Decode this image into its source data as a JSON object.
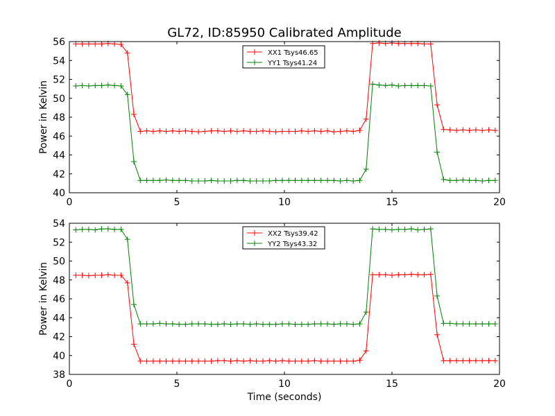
{
  "figure": {
    "title": "GL72, ID:85950 Calibrated Amplitude"
  },
  "chart_data": [
    {
      "type": "line",
      "ylabel": "Power in Kelvin",
      "xlabel": "",
      "xlim": [
        0,
        20
      ],
      "ylim": [
        40,
        56
      ],
      "xticks": [
        0,
        5,
        10,
        15,
        20
      ],
      "yticks": [
        40,
        42,
        44,
        46,
        48,
        50,
        52,
        54,
        56
      ],
      "grid": false,
      "legend": "top-center",
      "x": [
        0.3,
        0.6,
        0.9,
        1.2,
        1.5,
        1.8,
        2.1,
        2.4,
        2.7,
        3.0,
        3.3,
        3.6,
        3.9,
        4.2,
        4.5,
        4.8,
        5.1,
        5.4,
        5.7,
        6.0,
        6.3,
        6.6,
        6.9,
        7.2,
        7.5,
        7.8,
        8.1,
        8.4,
        8.7,
        9.0,
        9.3,
        9.6,
        9.9,
        10.2,
        10.5,
        10.8,
        11.1,
        11.4,
        11.7,
        12.0,
        12.3,
        12.6,
        12.9,
        13.2,
        13.5,
        13.8,
        14.1,
        14.4,
        14.7,
        15.0,
        15.3,
        15.6,
        15.9,
        16.2,
        16.5,
        16.8,
        17.1,
        17.4,
        17.7,
        18.0,
        18.3,
        18.6,
        18.9,
        19.2,
        19.5,
        19.8
      ],
      "series": [
        {
          "name": "XX1 Tsys46.65",
          "color": "#ff0000",
          "values": [
            55.75,
            55.75,
            55.75,
            55.75,
            55.75,
            55.8,
            55.75,
            55.7,
            54.8,
            48.3,
            46.5,
            46.55,
            46.5,
            46.55,
            46.5,
            46.55,
            46.5,
            46.55,
            46.5,
            46.45,
            46.5,
            46.55,
            46.55,
            46.5,
            46.55,
            46.5,
            46.55,
            46.5,
            46.5,
            46.55,
            46.5,
            46.45,
            46.5,
            46.5,
            46.5,
            46.55,
            46.5,
            46.55,
            46.5,
            46.55,
            46.45,
            46.5,
            46.55,
            46.5,
            46.6,
            47.8,
            55.8,
            55.85,
            55.8,
            55.85,
            55.8,
            55.8,
            55.8,
            55.8,
            55.75,
            55.75,
            49.3,
            46.7,
            46.65,
            46.6,
            46.65,
            46.6,
            46.65,
            46.6,
            46.65,
            46.6
          ]
        },
        {
          "name": "YY1 Tsys41.24",
          "color": "#008000",
          "values": [
            51.3,
            51.35,
            51.3,
            51.35,
            51.35,
            51.4,
            51.35,
            51.3,
            50.4,
            43.3,
            41.3,
            41.3,
            41.3,
            41.3,
            41.35,
            41.3,
            41.3,
            41.3,
            41.25,
            41.25,
            41.25,
            41.3,
            41.25,
            41.25,
            41.25,
            41.3,
            41.3,
            41.25,
            41.25,
            41.25,
            41.25,
            41.3,
            41.3,
            41.3,
            41.3,
            41.3,
            41.3,
            41.3,
            41.3,
            41.3,
            41.3,
            41.25,
            41.3,
            41.25,
            41.3,
            42.5,
            51.5,
            51.4,
            51.35,
            51.4,
            51.3,
            51.35,
            51.35,
            51.35,
            51.35,
            51.3,
            44.3,
            41.4,
            41.3,
            41.3,
            41.35,
            41.3,
            41.3,
            41.25,
            41.3,
            41.3
          ]
        }
      ]
    },
    {
      "type": "line",
      "ylabel": "Power in Kelvin",
      "xlabel": "Time (seconds)",
      "xlim": [
        0,
        20
      ],
      "ylim": [
        38,
        54
      ],
      "xticks": [
        0,
        5,
        10,
        15,
        20
      ],
      "yticks": [
        38,
        40,
        42,
        44,
        46,
        48,
        50,
        52,
        54
      ],
      "grid": false,
      "legend": "top-center",
      "x": [
        0.3,
        0.6,
        0.9,
        1.2,
        1.5,
        1.8,
        2.1,
        2.4,
        2.7,
        3.0,
        3.3,
        3.6,
        3.9,
        4.2,
        4.5,
        4.8,
        5.1,
        5.4,
        5.7,
        6.0,
        6.3,
        6.6,
        6.9,
        7.2,
        7.5,
        7.8,
        8.1,
        8.4,
        8.7,
        9.0,
        9.3,
        9.6,
        9.9,
        10.2,
        10.5,
        10.8,
        11.1,
        11.4,
        11.7,
        12.0,
        12.3,
        12.6,
        12.9,
        13.2,
        13.5,
        13.8,
        14.1,
        14.4,
        14.7,
        15.0,
        15.3,
        15.6,
        15.9,
        16.2,
        16.5,
        16.8,
        17.1,
        17.4,
        17.7,
        18.0,
        18.3,
        18.6,
        18.9,
        19.2,
        19.5,
        19.8
      ],
      "series": [
        {
          "name": "XX2 Tsys39.42",
          "color": "#ff0000",
          "values": [
            48.5,
            48.5,
            48.45,
            48.5,
            48.5,
            48.55,
            48.5,
            48.5,
            47.7,
            41.2,
            39.4,
            39.4,
            39.4,
            39.4,
            39.4,
            39.4,
            39.4,
            39.4,
            39.4,
            39.4,
            39.4,
            39.4,
            39.45,
            39.45,
            39.4,
            39.45,
            39.4,
            39.45,
            39.4,
            39.4,
            39.45,
            39.4,
            39.45,
            39.4,
            39.4,
            39.4,
            39.4,
            39.45,
            39.4,
            39.4,
            39.4,
            39.4,
            39.4,
            39.4,
            39.5,
            40.5,
            48.55,
            48.55,
            48.55,
            48.5,
            48.55,
            48.55,
            48.6,
            48.55,
            48.55,
            48.6,
            42.2,
            39.45,
            39.45,
            39.45,
            39.45,
            39.45,
            39.45,
            39.45,
            39.45,
            39.45
          ]
        },
        {
          "name": "YY2 Tsys43.32",
          "color": "#008000",
          "values": [
            53.3,
            53.35,
            53.35,
            53.3,
            53.4,
            53.4,
            53.35,
            53.35,
            52.3,
            45.4,
            43.35,
            43.35,
            43.35,
            43.4,
            43.35,
            43.35,
            43.3,
            43.3,
            43.35,
            43.35,
            43.35,
            43.3,
            43.3,
            43.35,
            43.3,
            43.35,
            43.35,
            43.3,
            43.35,
            43.3,
            43.3,
            43.3,
            43.35,
            43.35,
            43.3,
            43.3,
            43.3,
            43.35,
            43.35,
            43.35,
            43.3,
            43.35,
            43.35,
            43.3,
            43.35,
            44.6,
            53.4,
            53.35,
            53.35,
            53.3,
            53.35,
            53.35,
            53.4,
            53.3,
            53.35,
            53.4,
            46.3,
            43.4,
            43.4,
            43.35,
            43.35,
            43.35,
            43.35,
            43.35,
            43.35,
            43.35
          ]
        }
      ]
    }
  ]
}
